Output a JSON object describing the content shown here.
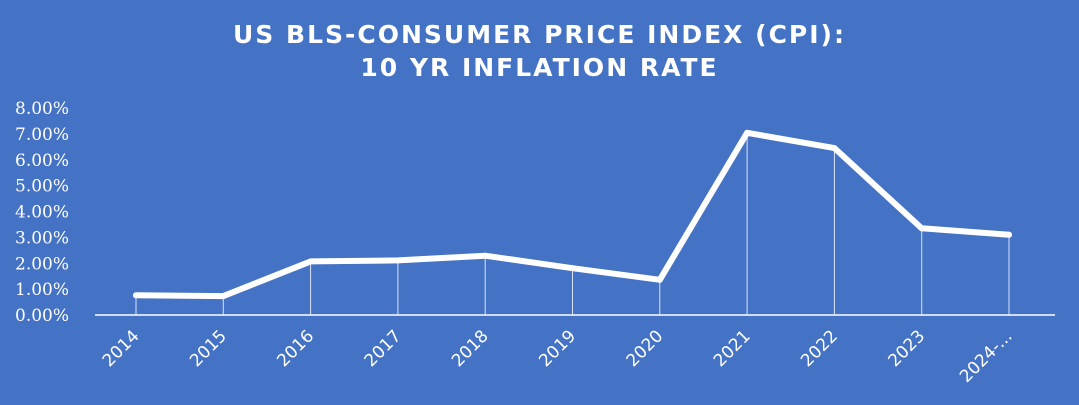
{
  "chart_data": {
    "type": "line",
    "title_lines": [
      "US BLS-CONSUMER PRICE INDEX (CPI):",
      "10 YR INFLATION RATE"
    ],
    "categories": [
      "2014",
      "2015",
      "2016",
      "2017",
      "2018",
      "2019",
      "2020",
      "2021",
      "2022",
      "2023",
      "2024-..."
    ],
    "series": [
      {
        "values": [
          0.76,
          0.73,
          2.07,
          2.11,
          2.29,
          1.81,
          1.36,
          7.04,
          6.45,
          3.35,
          3.1
        ]
      }
    ],
    "ylim": [
      0,
      8
    ],
    "yticks": [
      "0.00%",
      "1.00%",
      "2.00%",
      "3.00%",
      "4.00%",
      "5.00%",
      "6.00%",
      "7.00%",
      "8.00%"
    ],
    "drop_lines": true,
    "grid": false,
    "legend": "none",
    "colors": {
      "background": "#4472c4",
      "line": "#ffffff",
      "text": "#ffffff"
    }
  }
}
